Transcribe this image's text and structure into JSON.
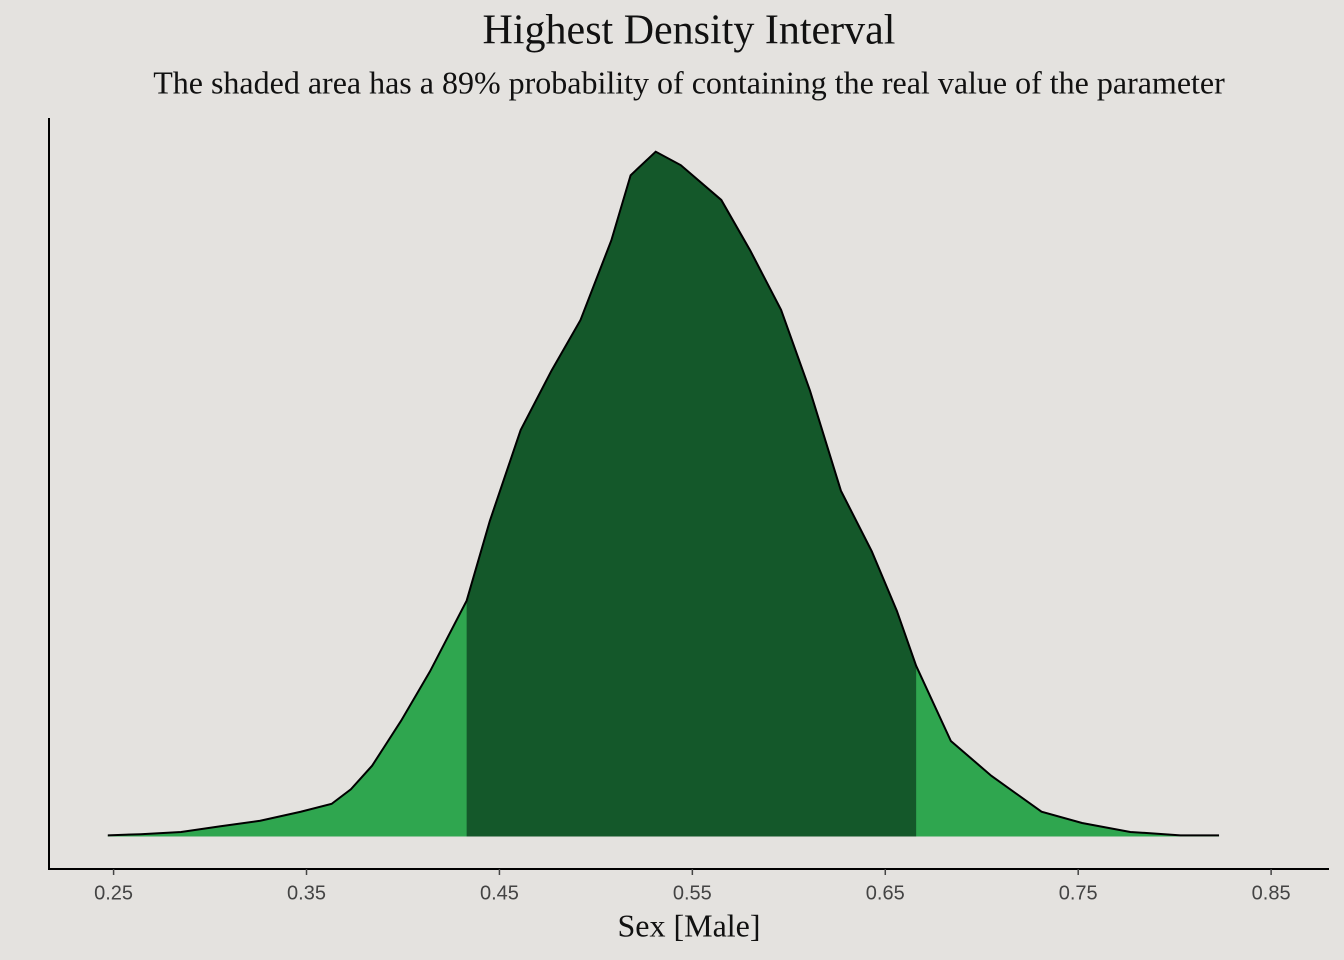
{
  "chart_data": {
    "type": "density",
    "title": "Highest Density Interval",
    "subtitle": "The shaded area has a 89% probability of containing the real value of the parameter",
    "x_label": "Sex [Male]",
    "x": [
      0.247,
      0.264,
      0.285,
      0.305,
      0.326,
      0.347,
      0.363,
      0.373,
      0.384,
      0.399,
      0.414,
      0.433,
      0.445,
      0.461,
      0.477,
      0.492,
      0.508,
      0.518,
      0.531,
      0.544,
      0.565,
      0.58,
      0.596,
      0.611,
      0.627,
      0.643,
      0.656,
      0.666,
      0.684,
      0.705,
      0.731,
      0.752,
      0.777,
      0.803,
      0.823
    ],
    "values": [
      0.01,
      0.02,
      0.04,
      0.09,
      0.14,
      0.22,
      0.29,
      0.42,
      0.63,
      1.03,
      1.47,
      2.1,
      2.81,
      3.62,
      4.15,
      4.6,
      5.31,
      5.89,
      6.1,
      5.98,
      5.67,
      5.22,
      4.69,
      3.97,
      3.08,
      2.54,
      2.01,
      1.52,
      0.85,
      0.54,
      0.22,
      0.12,
      0.04,
      0.01,
      0.01
    ],
    "hdi": [
      0.433,
      0.666
    ],
    "color": "#2fa64f",
    "hdi_color": "#14582a",
    "xlim": [
      0.216,
      0.88
    ],
    "xticks": [
      0.25,
      0.35,
      0.45,
      0.55,
      0.65,
      0.75,
      0.85
    ],
    "ylim": [
      -0.29,
      6.4
    ]
  }
}
